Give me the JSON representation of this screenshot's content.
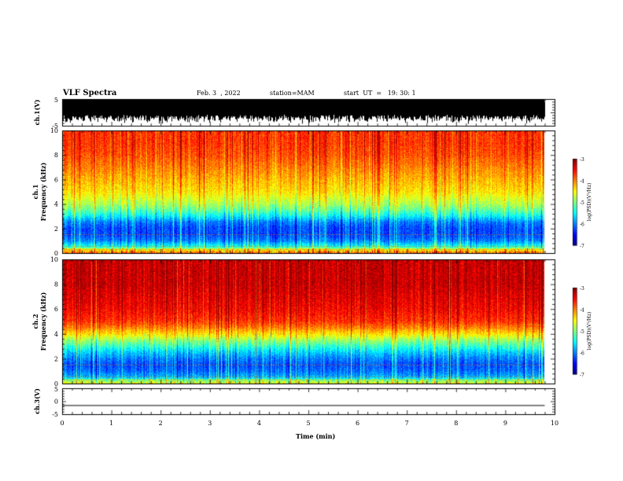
{
  "header": {
    "title": "VLF Spectra",
    "date": "Feb. 3  , 2022",
    "station": "station=MAM",
    "start": "start  UT  =   19: 30: 1"
  },
  "chart_data": [
    {
      "type": "line",
      "panel": "waveform-ch1",
      "ylabel": "ch.1(V)",
      "ylim": [
        -5,
        5
      ],
      "yticks": [
        "5",
        "-5"
      ],
      "description_values": "dense oscillating waveform filling most of +/-5 V range"
    },
    {
      "type": "heatmap",
      "panel": "spectrogram-ch1",
      "ylabel": "ch.1\nFrequency (kHz)",
      "ylabel_line1": "ch.1",
      "ylabel_line2": "Frequency  (kHz)",
      "ylim": [
        0,
        10
      ],
      "yticks": [
        "0",
        "2",
        "4",
        "6",
        "8",
        "10"
      ],
      "colorbar": {
        "label": "log(PSD)(V²/Hz)",
        "range": [
          -7,
          -3
        ],
        "ticks": [
          "-3",
          "-4",
          "-5",
          "-6",
          "-7"
        ]
      },
      "profile_kHz": [
        0,
        0.5,
        1,
        1.5,
        2,
        2.5,
        3,
        3.5,
        4,
        5,
        6,
        7,
        8,
        9,
        10
      ],
      "profile_logpsd": [
        -4.3,
        -5.4,
        -6.0,
        -6.2,
        -6.2,
        -6.0,
        -5.5,
        -5.1,
        -4.8,
        -4.4,
        -4.2,
        -4.0,
        -3.8,
        -3.7,
        -3.7
      ]
    },
    {
      "type": "heatmap",
      "panel": "spectrogram-ch2",
      "ylabel_line1": "ch.2",
      "ylabel_line2": "Frequency  (kHz)",
      "ylim": [
        0,
        10
      ],
      "yticks": [
        "0",
        "2",
        "4",
        "6",
        "8",
        "10"
      ],
      "colorbar": {
        "label": "log(PSD)(V²/Hz)",
        "range": [
          -7,
          -3
        ],
        "ticks": [
          "-3",
          "-4",
          "-5",
          "-6",
          "-7"
        ]
      },
      "profile_kHz": [
        0,
        0.5,
        1,
        1.5,
        2,
        2.5,
        3,
        3.5,
        4,
        4.5,
        5,
        6,
        7,
        8,
        9,
        10
      ],
      "profile_logpsd": [
        -5.0,
        -5.8,
        -6.1,
        -6.2,
        -6.0,
        -5.7,
        -5.3,
        -4.9,
        -4.4,
        -4.0,
        -3.7,
        -3.5,
        -3.4,
        -3.3,
        -3.3,
        -3.3
      ]
    },
    {
      "type": "line",
      "panel": "waveform-ch3",
      "ylabel": "ch.3(V)",
      "ylim": [
        -5,
        5
      ],
      "yticks": [
        "5",
        "0",
        "-5"
      ],
      "values": [
        -1.5,
        -1.5
      ]
    }
  ],
  "xaxis": {
    "label": "Time  (min)",
    "xlim": [
      0,
      10
    ],
    "ticks": [
      "0",
      "1",
      "2",
      "3",
      "4",
      "5",
      "6",
      "7",
      "8",
      "9",
      "10"
    ],
    "data_end_min": 9.8
  }
}
